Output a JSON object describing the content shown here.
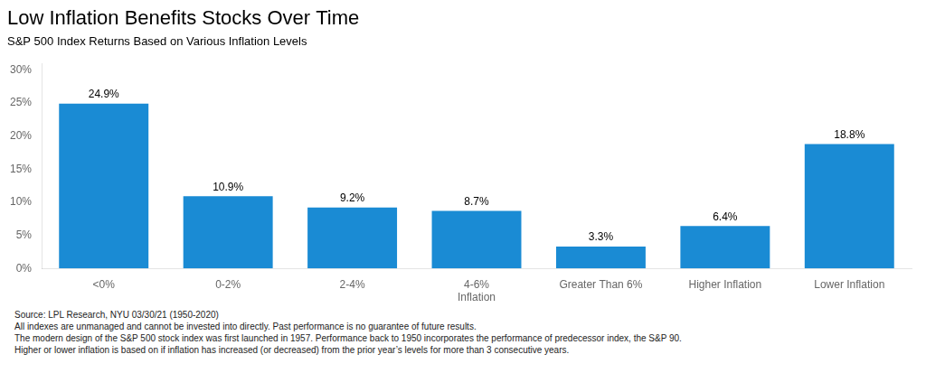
{
  "chart_data": {
    "type": "bar",
    "title": "Low Inflation Benefits Stocks Over Time",
    "subtitle": "S&P 500 Index Returns Based on Various Inflation Levels",
    "categories": [
      "<0%",
      "0-2%",
      "2-4%",
      "4-6%\nInflation",
      "Greater Than 6%",
      "Higher Inflation",
      "Lower Inflation"
    ],
    "values": [
      24.9,
      10.9,
      9.2,
      8.7,
      3.3,
      6.4,
      18.8
    ],
    "value_labels": [
      "24.9%",
      "10.9%",
      "9.2%",
      "8.7%",
      "3.3%",
      "6.4%",
      "18.8%"
    ],
    "data_labels": true,
    "color": "#1a8bd4",
    "ylim": [
      0,
      31
    ],
    "yticks": [
      {
        "value": 0,
        "label": "0%"
      },
      {
        "value": 5,
        "label": "5%"
      },
      {
        "value": 10,
        "label": "10%"
      },
      {
        "value": 15,
        "label": "15%"
      },
      {
        "value": 20,
        "label": "20%"
      },
      {
        "value": 25,
        "label": "25%"
      },
      {
        "value": 30,
        "label": "30%"
      }
    ],
    "grid": false,
    "annotations": [
      "Source: LPL Research, NYU 03/30/21 (1950-2020)",
      "All indexes are unmanaged and cannot be invested into directly. Past performance is no guarantee of future results.",
      "The modern design of the S&P 500 stock index was first launched in 1957. Performance back to 1950 incorporates the performance of predecessor index, the S&P 90.",
      "Higher or lower inflation is based on if inflation has increased (or decreased) from the prior year’s levels for more than 3 consecutive years."
    ]
  }
}
